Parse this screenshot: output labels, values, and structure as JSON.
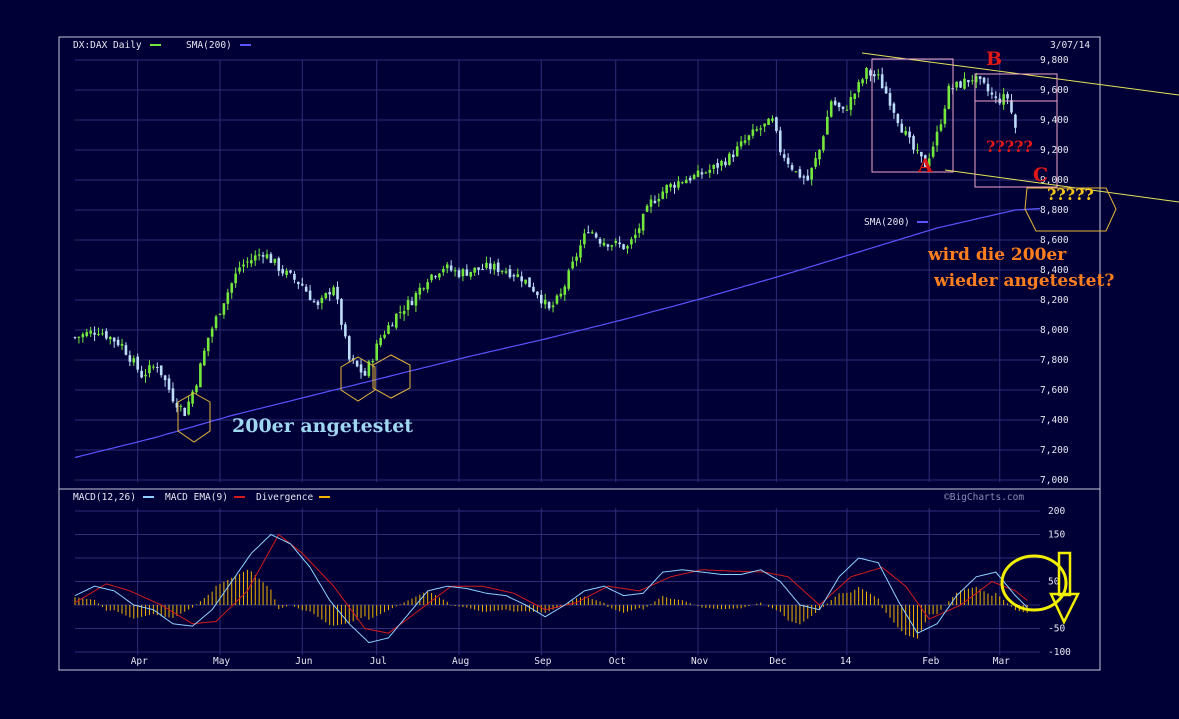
{
  "chart_data": [
    {
      "type": "candlestick",
      "title": "DX:DAX Daily",
      "date": "3/07/14",
      "series_names": [
        "DX:DAX Daily",
        "SMA(200)"
      ],
      "colors": {
        "up": "#74e83c",
        "down": "#bcdcf8",
        "sma": "#5b54ff",
        "grid": "#2e2e78",
        "background": "#000037",
        "text": "#e6e6f0",
        "trend": "#e4e455",
        "hex": "#e7b63a"
      },
      "ylim": [
        7000,
        9800
      ],
      "yticks": [
        "9,800",
        "9,600",
        "9,400",
        "9,200",
        "9,000",
        "8,800",
        "8,600",
        "8,400",
        "8,200",
        "8,000",
        "7,800",
        "7,600",
        "7,400",
        "7,200",
        "7,000"
      ],
      "ytick_values": [
        9800,
        9600,
        9400,
        9200,
        9000,
        8800,
        8600,
        8400,
        8200,
        8000,
        7800,
        7600,
        7400,
        7200,
        7000
      ],
      "x_range_days": [
        0,
        245
      ],
      "month_labels": [
        "Apr",
        "May",
        "Jun",
        "Jul",
        "Aug",
        "Sep",
        "Oct",
        "Nov",
        "Dec",
        "14",
        "Feb",
        "Mar"
      ],
      "month_days": [
        16,
        37,
        58,
        77,
        98,
        119,
        138,
        159,
        179,
        197,
        218,
        236
      ],
      "close_anchors": [
        [
          0,
          7950
        ],
        [
          6,
          8000
        ],
        [
          12,
          7900
        ],
        [
          17,
          7700
        ],
        [
          21,
          7770
        ],
        [
          25,
          7550
        ],
        [
          28,
          7450
        ],
        [
          31,
          7660
        ],
        [
          34,
          7950
        ],
        [
          38,
          8200
        ],
        [
          42,
          8420
        ],
        [
          48,
          8520
        ],
        [
          53,
          8390
        ],
        [
          58,
          8300
        ],
        [
          62,
          8150
        ],
        [
          66,
          8300
        ],
        [
          70,
          7800
        ],
        [
          74,
          7700
        ],
        [
          78,
          7950
        ],
        [
          82,
          8100
        ],
        [
          86,
          8200
        ],
        [
          90,
          8350
        ],
        [
          94,
          8420
        ],
        [
          98,
          8380
        ],
        [
          102,
          8400
        ],
        [
          106,
          8420
        ],
        [
          110,
          8400
        ],
        [
          114,
          8350
        ],
        [
          118,
          8250
        ],
        [
          121,
          8130
        ],
        [
          124,
          8230
        ],
        [
          128,
          8500
        ],
        [
          131,
          8680
        ],
        [
          134,
          8600
        ],
        [
          138,
          8570
        ],
        [
          141,
          8550
        ],
        [
          143,
          8630
        ],
        [
          147,
          8850
        ],
        [
          151,
          8950
        ],
        [
          155,
          9000
        ],
        [
          159,
          9030
        ],
        [
          163,
          9080
        ],
        [
          167,
          9150
        ],
        [
          171,
          9260
        ],
        [
          174,
          9330
        ],
        [
          178,
          9390
        ],
        [
          180,
          9200
        ],
        [
          184,
          9050
        ],
        [
          187,
          9000
        ],
        [
          190,
          9200
        ],
        [
          193,
          9530
        ],
        [
          196,
          9450
        ],
        [
          199,
          9580
        ],
        [
          202,
          9720
        ],
        [
          205,
          9680
        ],
        [
          208,
          9530
        ],
        [
          211,
          9350
        ],
        [
          214,
          9200
        ],
        [
          217,
          9100
        ],
        [
          220,
          9300
        ],
        [
          223,
          9600
        ],
        [
          226,
          9640
        ],
        [
          229,
          9680
        ],
        [
          232,
          9620
        ],
        [
          235,
          9530
        ],
        [
          238,
          9550
        ],
        [
          240,
          9350
        ]
      ],
      "sma_points": [
        [
          0,
          7150
        ],
        [
          20,
          7280
        ],
        [
          40,
          7430
        ],
        [
          60,
          7560
        ],
        [
          80,
          7690
        ],
        [
          100,
          7820
        ],
        [
          120,
          7940
        ],
        [
          140,
          8070
        ],
        [
          160,
          8210
        ],
        [
          180,
          8360
        ],
        [
          200,
          8520
        ],
        [
          220,
          8680
        ],
        [
          240,
          8800
        ]
      ],
      "sma_label": "SMA(200)",
      "annotations": {
        "b": "B",
        "a": "A",
        "c": "C",
        "q_red": "?????",
        "q_yellow": "?????",
        "tested": "200er angetestet",
        "question_line1": "wird die 200er",
        "question_line2": "wieder angetestet?"
      }
    },
    {
      "type": "line",
      "title": "MACD(12,26)",
      "series_names": [
        "MACD(12,26)",
        "MACD EMA(9)",
        "Divergence"
      ],
      "colors": {
        "macd": "#8fd2ff",
        "ema": "#d21c1c",
        "divergence": "#f0b400"
      },
      "ylim": [
        -100,
        200
      ],
      "yticks": [
        "200",
        "150",
        "50",
        "-50",
        "-100"
      ],
      "ytick_values": [
        200,
        150,
        50,
        -50,
        -100
      ],
      "credit": "©BigCharts.com",
      "macd_anchors": [
        [
          0,
          20
        ],
        [
          5,
          40
        ],
        [
          10,
          30
        ],
        [
          15,
          0
        ],
        [
          20,
          -10
        ],
        [
          25,
          -40
        ],
        [
          30,
          -45
        ],
        [
          35,
          -10
        ],
        [
          40,
          50
        ],
        [
          45,
          110
        ],
        [
          50,
          150
        ],
        [
          55,
          130
        ],
        [
          60,
          80
        ],
        [
          65,
          10
        ],
        [
          70,
          -40
        ],
        [
          75,
          -80
        ],
        [
          80,
          -70
        ],
        [
          85,
          -20
        ],
        [
          90,
          30
        ],
        [
          95,
          40
        ],
        [
          100,
          35
        ],
        [
          105,
          25
        ],
        [
          110,
          20
        ],
        [
          115,
          0
        ],
        [
          120,
          -25
        ],
        [
          125,
          0
        ],
        [
          130,
          30
        ],
        [
          135,
          40
        ],
        [
          140,
          20
        ],
        [
          145,
          25
        ],
        [
          150,
          70
        ],
        [
          155,
          75
        ],
        [
          160,
          70
        ],
        [
          165,
          65
        ],
        [
          170,
          65
        ],
        [
          175,
          75
        ],
        [
          180,
          50
        ],
        [
          185,
          0
        ],
        [
          190,
          -10
        ],
        [
          195,
          60
        ],
        [
          200,
          100
        ],
        [
          205,
          90
        ],
        [
          210,
          10
        ],
        [
          215,
          -60
        ],
        [
          220,
          -40
        ],
        [
          225,
          20
        ],
        [
          230,
          60
        ],
        [
          235,
          70
        ],
        [
          240,
          20
        ],
        [
          243,
          -5
        ]
      ],
      "ema_anchors": [
        [
          0,
          5
        ],
        [
          8,
          45
        ],
        [
          14,
          30
        ],
        [
          22,
          0
        ],
        [
          30,
          -40
        ],
        [
          36,
          -35
        ],
        [
          44,
          30
        ],
        [
          52,
          150
        ],
        [
          58,
          110
        ],
        [
          66,
          40
        ],
        [
          74,
          -50
        ],
        [
          80,
          -60
        ],
        [
          88,
          -10
        ],
        [
          96,
          40
        ],
        [
          104,
          40
        ],
        [
          112,
          25
        ],
        [
          120,
          -10
        ],
        [
          128,
          5
        ],
        [
          136,
          40
        ],
        [
          144,
          30
        ],
        [
          152,
          60
        ],
        [
          160,
          75
        ],
        [
          168,
          72
        ],
        [
          176,
          70
        ],
        [
          182,
          60
        ],
        [
          190,
          0
        ],
        [
          198,
          60
        ],
        [
          206,
          80
        ],
        [
          212,
          40
        ],
        [
          218,
          -30
        ],
        [
          226,
          0
        ],
        [
          234,
          50
        ],
        [
          240,
          30
        ],
        [
          243,
          10
        ]
      ]
    }
  ]
}
